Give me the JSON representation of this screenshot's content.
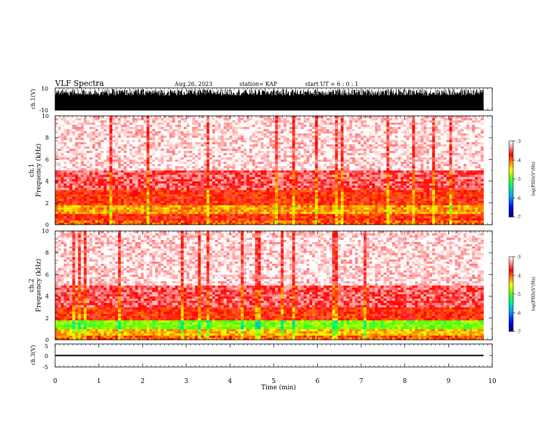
{
  "header": {
    "title": "VLF Spectra",
    "date": "Aug.26, 2023",
    "station": "station= KAP",
    "start_ut": "start  UT =   6 : 0  : 1"
  },
  "colors": {
    "spectrogram_scale": [
      "#000066",
      "#0000ff",
      "#00aaff",
      "#00ff66",
      "#66ff00",
      "#ffff00",
      "#ff8800",
      "#ff0000",
      "#ff9999",
      "#ffffff"
    ]
  },
  "chart_data": [
    {
      "type": "line",
      "panel": "ch.1 waveform",
      "ylabel": "ch.1(V)",
      "ylim": [
        -10,
        10
      ],
      "yticks": [
        "10",
        "-10"
      ],
      "xlim": [
        0,
        10
      ],
      "description_level": "dense broadband noise, mostly near -10 to +8 V"
    },
    {
      "type": "heatmap",
      "panel": "ch.1 spectrogram",
      "ylabel_top": "ch.1",
      "ylabel": "Frequency  (kHz)",
      "ylim": [
        0,
        10
      ],
      "yticks": [
        "10",
        "8",
        "6",
        "4",
        "2",
        "0"
      ],
      "xlim": [
        0,
        9.8
      ],
      "colorbar": {
        "label": "log(PSD)(V²/Hz)",
        "range": [
          -7,
          -3
        ],
        "ticks": [
          "-3",
          "-4",
          "-5",
          "-6",
          "-7"
        ]
      },
      "bands": [
        {
          "from_khz": 0.0,
          "to_khz": 0.5,
          "level": -4.0
        },
        {
          "from_khz": 0.5,
          "to_khz": 1.0,
          "level": -3.8
        },
        {
          "from_khz": 1.0,
          "to_khz": 1.8,
          "level": -4.2
        },
        {
          "from_khz": 1.8,
          "to_khz": 3.3,
          "level": -3.8
        },
        {
          "from_khz": 3.3,
          "to_khz": 5.0,
          "level": -3.5
        },
        {
          "from_khz": 5.0,
          "to_khz": 10.0,
          "level": -3.1
        }
      ]
    },
    {
      "type": "heatmap",
      "panel": "ch.2 spectrogram",
      "ylabel_top": "ch.2",
      "ylabel": "Frequency  (kHz)",
      "ylim": [
        0,
        10
      ],
      "yticks": [
        "10",
        "8",
        "6",
        "4",
        "2",
        "0"
      ],
      "xlim": [
        0,
        9.8
      ],
      "colorbar": {
        "label": "log(PSD)(V²/Hz)",
        "range": [
          -7,
          -3
        ],
        "ticks": [
          "-3",
          "-4",
          "-5",
          "-6",
          "-7"
        ]
      },
      "bands": [
        {
          "from_khz": 0.0,
          "to_khz": 0.5,
          "level": -4.0
        },
        {
          "from_khz": 0.5,
          "to_khz": 1.0,
          "level": -4.3
        },
        {
          "from_khz": 1.0,
          "to_khz": 1.8,
          "level": -4.9
        },
        {
          "from_khz": 1.8,
          "to_khz": 3.0,
          "level": -3.8
        },
        {
          "from_khz": 3.0,
          "to_khz": 5.0,
          "level": -3.5
        },
        {
          "from_khz": 5.0,
          "to_khz": 10.0,
          "level": -3.1
        }
      ]
    },
    {
      "type": "line",
      "panel": "ch.3 waveform",
      "ylabel": "ch.3(V)",
      "ylim": [
        -5,
        5
      ],
      "yticks": [
        "5",
        "0",
        "-5"
      ],
      "xlim": [
        0,
        10
      ],
      "trace_range": [
        -0.3,
        0.3
      ]
    }
  ],
  "xaxis": {
    "label": "Time  (min)",
    "ticks": [
      "0",
      "1",
      "2",
      "3",
      "4",
      "5",
      "6",
      "7",
      "8",
      "9",
      "10"
    ]
  }
}
